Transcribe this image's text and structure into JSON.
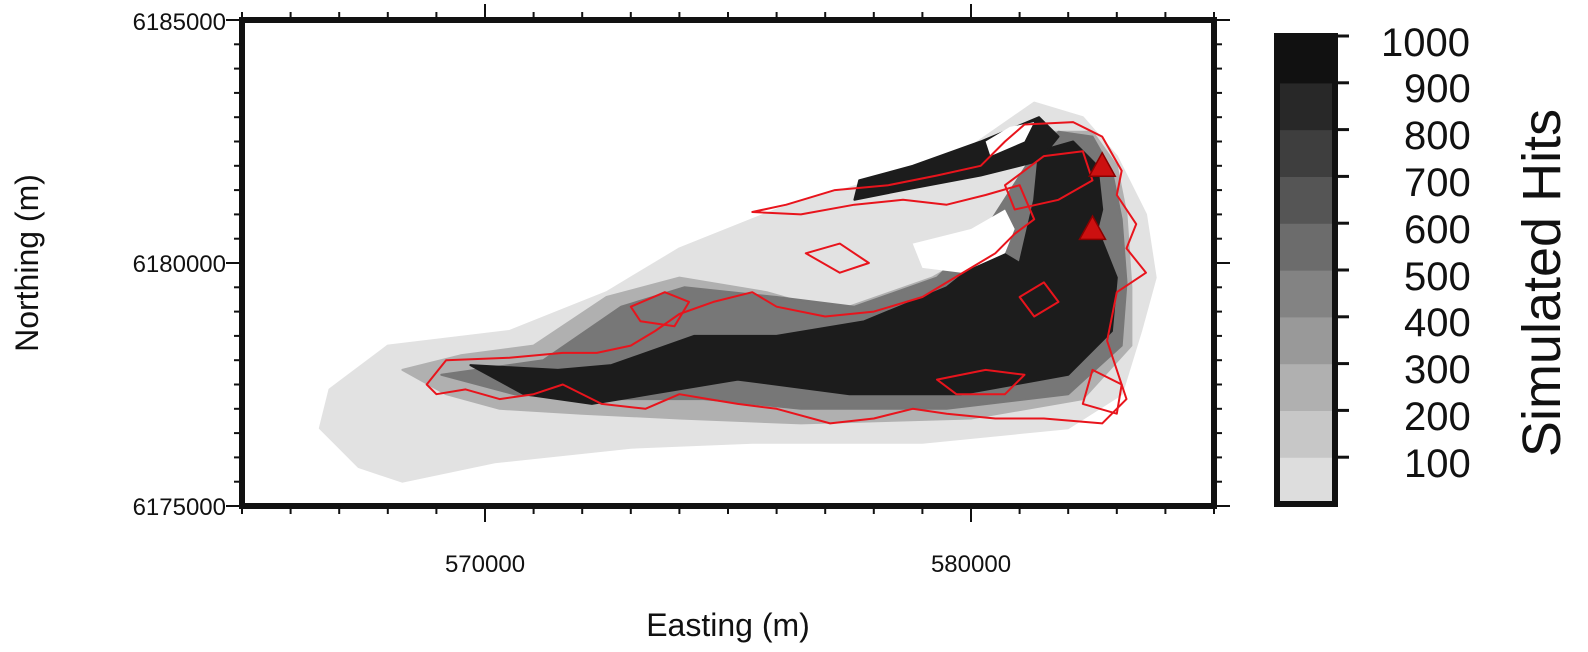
{
  "chart_data": {
    "type": "heatmap",
    "xlabel": "Easting (m)",
    "ylabel": "Northing (m)",
    "xlim": [
      565000,
      585000
    ],
    "ylim": [
      6175000,
      6185000
    ],
    "x_ticks": [
      570000,
      580000
    ],
    "y_ticks": [
      6175000,
      6180000,
      6185000
    ],
    "x_tick_labels": [
      "570000",
      "580000"
    ],
    "y_tick_labels": [
      "6175000",
      "6180000",
      "6185000"
    ],
    "grid": false,
    "legend": "none",
    "colorbar": {
      "title": "Simulated Hits",
      "range": [
        0,
        1000
      ],
      "levels": [
        100,
        200,
        300,
        400,
        500,
        600,
        700,
        800,
        900,
        1000
      ],
      "labels": [
        "1000",
        "900",
        "800",
        "700",
        "600",
        "500",
        "400",
        "300",
        "200",
        "100"
      ],
      "position": "right"
    },
    "vents": [
      {
        "x": 582700,
        "y": 6182000
      },
      {
        "x": 582500,
        "y": 6180700
      }
    ],
    "colors": {
      "outline": "#e8141c",
      "vent": "#cc1010",
      "frame": "#111111"
    },
    "hits_regions": [
      {
        "level": 80,
        "points": [
          [
            566800,
            6177400
          ],
          [
            568000,
            6178300
          ],
          [
            570500,
            6178600
          ],
          [
            572500,
            6179400
          ],
          [
            574000,
            6180300
          ],
          [
            576000,
            6181100
          ],
          [
            578000,
            6181700
          ],
          [
            580000,
            6182400
          ],
          [
            581300,
            6183300
          ],
          [
            582300,
            6183000
          ],
          [
            583000,
            6182200
          ],
          [
            583600,
            6181000
          ],
          [
            583800,
            6179700
          ],
          [
            583500,
            6178600
          ],
          [
            583100,
            6177300
          ],
          [
            582000,
            6176600
          ],
          [
            579000,
            6176300
          ],
          [
            575500,
            6176300
          ],
          [
            573000,
            6176200
          ],
          [
            570200,
            6175900
          ],
          [
            568300,
            6175500
          ],
          [
            567400,
            6175800
          ],
          [
            566600,
            6176600
          ]
        ]
      },
      {
        "level": 300,
        "points": [
          [
            568300,
            6177800
          ],
          [
            569500,
            6178100
          ],
          [
            571000,
            6178300
          ],
          [
            572500,
            6179300
          ],
          [
            574000,
            6179700
          ],
          [
            575800,
            6179400
          ],
          [
            577200,
            6179000
          ],
          [
            579200,
            6179700
          ],
          [
            580600,
            6180500
          ],
          [
            581200,
            6181800
          ],
          [
            581600,
            6182700
          ],
          [
            582500,
            6182700
          ],
          [
            583000,
            6182000
          ],
          [
            583200,
            6181000
          ],
          [
            583300,
            6179500
          ],
          [
            583300,
            6178300
          ],
          [
            582300,
            6177200
          ],
          [
            580000,
            6176800
          ],
          [
            576500,
            6176700
          ],
          [
            574000,
            6176800
          ],
          [
            572000,
            6176900
          ],
          [
            570300,
            6177000
          ],
          [
            569200,
            6177300
          ]
        ]
      },
      {
        "level": 550,
        "points": [
          [
            569100,
            6177700
          ],
          [
            571200,
            6178000
          ],
          [
            572800,
            6179100
          ],
          [
            574100,
            6179500
          ],
          [
            576000,
            6179300
          ],
          [
            577600,
            6179100
          ],
          [
            579300,
            6179700
          ],
          [
            580300,
            6180700
          ],
          [
            581200,
            6182100
          ],
          [
            581800,
            6182700
          ],
          [
            582500,
            6182600
          ],
          [
            582900,
            6181900
          ],
          [
            583100,
            6180900
          ],
          [
            583200,
            6179600
          ],
          [
            583100,
            6178300
          ],
          [
            582000,
            6177300
          ],
          [
            579500,
            6177000
          ],
          [
            576500,
            6177000
          ],
          [
            574500,
            6177200
          ],
          [
            572200,
            6177200
          ],
          [
            570600,
            6177300
          ]
        ]
      },
      {
        "level": 950,
        "points": [
          [
            569700,
            6177900
          ],
          [
            571500,
            6177800
          ],
          [
            572600,
            6177900
          ],
          [
            574300,
            6178500
          ],
          [
            576000,
            6178500
          ],
          [
            577800,
            6178800
          ],
          [
            579500,
            6179500
          ],
          [
            580500,
            6180300
          ],
          [
            581000,
            6180000
          ],
          [
            581300,
            6181300
          ],
          [
            581400,
            6182300
          ],
          [
            582100,
            6182500
          ],
          [
            582600,
            6182000
          ],
          [
            582700,
            6181100
          ],
          [
            582600,
            6180700
          ],
          [
            583000,
            6179700
          ],
          [
            582900,
            6178600
          ],
          [
            582000,
            6177700
          ],
          [
            579800,
            6177300
          ],
          [
            577500,
            6177300
          ],
          [
            575200,
            6177600
          ],
          [
            573400,
            6177300
          ],
          [
            572200,
            6177100
          ],
          [
            570800,
            6177300
          ]
        ]
      },
      {
        "level": 950,
        "points": [
          [
            577600,
            6181300
          ],
          [
            578600,
            6181500
          ],
          [
            580200,
            6181800
          ],
          [
            581400,
            6182100
          ],
          [
            581800,
            6182600
          ],
          [
            581400,
            6183000
          ],
          [
            580200,
            6182500
          ],
          [
            578800,
            6182000
          ],
          [
            577700,
            6181700
          ]
        ]
      }
    ],
    "holes": [
      {
        "points": [
          [
            578800,
            6180400
          ],
          [
            580000,
            6180700
          ],
          [
            580700,
            6181100
          ],
          [
            580900,
            6180700
          ],
          [
            580700,
            6180200
          ],
          [
            579800,
            6179800
          ],
          [
            579000,
            6179900
          ]
        ]
      },
      {
        "points": [
          [
            580400,
            6182200
          ],
          [
            581100,
            6182500
          ],
          [
            581300,
            6182900
          ],
          [
            580800,
            6182800
          ],
          [
            580300,
            6182500
          ]
        ]
      }
    ],
    "outline_paths": [
      {
        "points": [
          [
            568800,
            6177500
          ],
          [
            569200,
            6178000
          ],
          [
            570500,
            6178050
          ],
          [
            571600,
            6178150
          ],
          [
            572300,
            6178150
          ],
          [
            573000,
            6178300
          ],
          [
            573500,
            6178600
          ],
          [
            574000,
            6178950
          ],
          [
            574700,
            6179200
          ],
          [
            575500,
            6179400
          ],
          [
            576000,
            6179100
          ],
          [
            577000,
            6178900
          ],
          [
            578000,
            6179000
          ],
          [
            579000,
            6179300
          ],
          [
            580000,
            6179900
          ],
          [
            580500,
            6180200
          ],
          [
            580900,
            6180600
          ],
          [
            581300,
            6180900
          ],
          [
            581000,
            6181600
          ],
          [
            580300,
            6181400
          ],
          [
            579500,
            6181200
          ],
          [
            578600,
            6181300
          ],
          [
            577600,
            6181200
          ],
          [
            576500,
            6181000
          ],
          [
            575500,
            6181050
          ],
          [
            576200,
            6181200
          ],
          [
            577200,
            6181500
          ],
          [
            578300,
            6181600
          ],
          [
            579300,
            6181800
          ],
          [
            580200,
            6182000
          ],
          [
            580700,
            6182500
          ],
          [
            581100,
            6182850
          ],
          [
            582100,
            6182900
          ],
          [
            582700,
            6182600
          ],
          [
            583100,
            6181900
          ],
          [
            583000,
            6181400
          ],
          [
            583400,
            6180800
          ],
          [
            583200,
            6180300
          ],
          [
            583600,
            6179800
          ],
          [
            583000,
            6179400
          ],
          [
            582800,
            6178400
          ],
          [
            583000,
            6177800
          ],
          [
            583200,
            6177200
          ],
          [
            582700,
            6176700
          ],
          [
            581500,
            6176800
          ],
          [
            580500,
            6176800
          ],
          [
            579500,
            6176900
          ],
          [
            578800,
            6177000
          ],
          [
            578000,
            6176800
          ],
          [
            577100,
            6176700
          ],
          [
            576000,
            6177000
          ],
          [
            575200,
            6177100
          ],
          [
            574600,
            6177200
          ],
          [
            574000,
            6177300
          ],
          [
            573300,
            6177000
          ],
          [
            572400,
            6177100
          ],
          [
            571600,
            6177500
          ],
          [
            571000,
            6177300
          ],
          [
            570300,
            6177200
          ],
          [
            569600,
            6177400
          ],
          [
            569000,
            6177300
          ]
        ]
      },
      {
        "points": [
          [
            573000,
            6179100
          ],
          [
            573700,
            6179400
          ],
          [
            574200,
            6179200
          ],
          [
            573900,
            6178700
          ],
          [
            573200,
            6178800
          ]
        ]
      },
      {
        "points": [
          [
            580700,
            6181600
          ],
          [
            581500,
            6182200
          ],
          [
            582300,
            6182300
          ],
          [
            582500,
            6181700
          ],
          [
            581800,
            6181300
          ],
          [
            580900,
            6181100
          ]
        ]
      },
      {
        "points": [
          [
            576600,
            6180200
          ],
          [
            577300,
            6180400
          ],
          [
            577900,
            6180000
          ],
          [
            577300,
            6179800
          ]
        ]
      },
      {
        "points": [
          [
            579300,
            6177600
          ],
          [
            580300,
            6177800
          ],
          [
            581100,
            6177700
          ],
          [
            580700,
            6177300
          ],
          [
            579700,
            6177300
          ]
        ]
      },
      {
        "points": [
          [
            582500,
            6177800
          ],
          [
            583100,
            6177500
          ],
          [
            583000,
            6176900
          ],
          [
            582300,
            6177100
          ]
        ]
      },
      {
        "points": [
          [
            581000,
            6179300
          ],
          [
            581500,
            6179600
          ],
          [
            581800,
            6179200
          ],
          [
            581300,
            6178900
          ]
        ]
      }
    ]
  }
}
